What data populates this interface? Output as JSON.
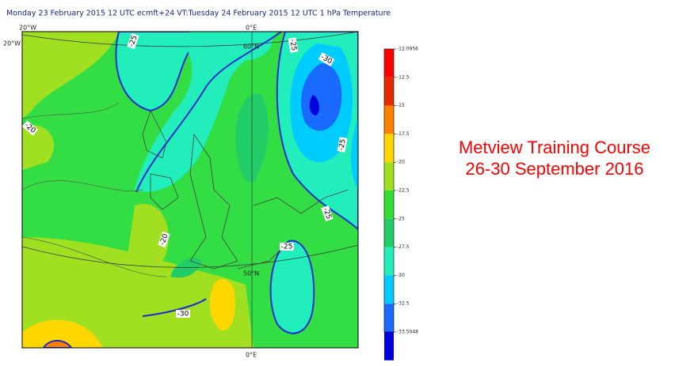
{
  "header": {
    "title": "Monday 23 February 2015 12 UTC ecmft+24 VT:Tuesday 24 February 2015 12 UTC 1 hPa  Temperature"
  },
  "map": {
    "axis_labels": [
      "20°W",
      "20°W",
      "0°E",
      "0°E",
      "60°N",
      "50°N"
    ],
    "contour_labels": [
      "-25",
      "-25",
      "-30",
      "-20",
      "-25",
      "-25",
      "-20",
      "-25",
      "-30"
    ]
  },
  "colorbar": {
    "labels": [
      "-12.0956",
      "-12.5",
      "-15",
      "-17.5",
      "-20",
      "-22.5",
      "-25",
      "-27.5",
      "-30",
      "-32.5",
      "-33.5048"
    ],
    "colors": [
      "#ff0000",
      "#e42b00",
      "#ff7f00",
      "#ffd700",
      "#a0e020",
      "#33dd33",
      "#22cc66",
      "#22eebb",
      "#00ccff",
      "#1a6aff",
      "#0000dd"
    ]
  },
  "course": {
    "line1": "Metview Training Course",
    "line2": "26-30 September 2016"
  }
}
